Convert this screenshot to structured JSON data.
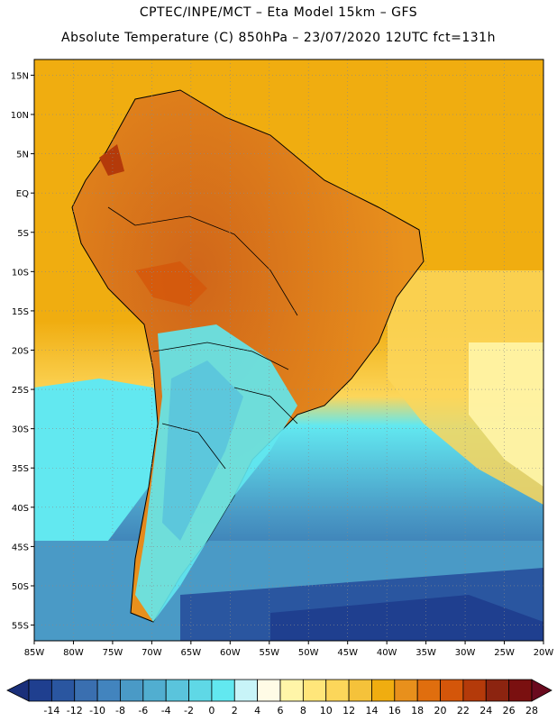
{
  "header": {
    "line1": "CPTEC/INPE/MCT –  Eta Model 15km – GFS",
    "line2": "Absolute Temperature (C) 850hPa – 23/07/2020 12UTC fct=131h"
  },
  "map": {
    "lat_labels": [
      "15N",
      "10N",
      "5N",
      "EQ",
      "5S",
      "10S",
      "15S",
      "20S",
      "25S",
      "30S",
      "35S",
      "40S",
      "45S",
      "50S",
      "55S"
    ],
    "lon_labels": [
      "85W",
      "80W",
      "75W",
      "70W",
      "65W",
      "60W",
      "55W",
      "50W",
      "45W",
      "40W",
      "35W",
      "30W",
      "25W",
      "20W"
    ],
    "lon_range": [
      -85,
      -20
    ],
    "lat_range": [
      -57,
      17
    ]
  },
  "colorbar": {
    "levels": [
      "-14",
      "-12",
      "-10",
      "-8",
      "-6",
      "-4",
      "-2",
      "0",
      "2",
      "4",
      "6",
      "8",
      "10",
      "12",
      "14",
      "16",
      "18",
      "20",
      "22",
      "24",
      "26",
      "28"
    ],
    "colors": [
      "#1f3f8f",
      "#2a56a0",
      "#3a6fb0",
      "#4284be",
      "#4a9ac6",
      "#51aed0",
      "#5ac4dc",
      "#5fd8e6",
      "#62e8f0",
      "#c8f4f8",
      "#fffbe6",
      "#fff5a8",
      "#ffe67a",
      "#fcd65a",
      "#f5c23a",
      "#f0ad10",
      "#e8901c",
      "#e06e0e",
      "#d4560a",
      "#b43a0a",
      "#8c2410",
      "#7a1010"
    ],
    "low_arrow_color": "#1a2f7a",
    "high_arrow_color": "#6a0a1e"
  },
  "legend_colors": {
    "ocean_cold_deep": "#1f3f8f",
    "ocean_warm": "#f0ad10",
    "land_warm": "#e8901c",
    "hot_core": "#c85a14"
  }
}
